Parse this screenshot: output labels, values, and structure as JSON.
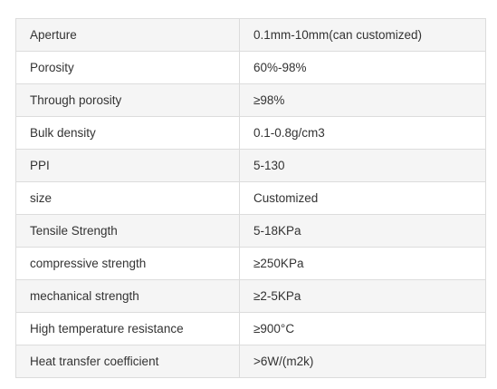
{
  "spec_table": {
    "rows": [
      {
        "property": "Aperture",
        "value": "0.1mm-10mm(can customized)"
      },
      {
        "property": "Porosity",
        "value": "60%-98%"
      },
      {
        "property": "Through porosity",
        "value": "≥98%"
      },
      {
        "property": "Bulk density",
        "value": "0.1-0.8g/cm3"
      },
      {
        "property": "PPI",
        "value": "5-130"
      },
      {
        "property": "size",
        "value": "Customized"
      },
      {
        "property": "Tensile Strength",
        "value": "5-18KPa"
      },
      {
        "property": "compressive strength",
        "value": "≥250KPa"
      },
      {
        "property": "mechanical strength",
        "value": "≥2-5KPa"
      },
      {
        "property": "High temperature resistance",
        "value": "≥900°C"
      },
      {
        "property": "Heat transfer coefficient",
        "value": ">6W/(m2k)"
      }
    ]
  }
}
